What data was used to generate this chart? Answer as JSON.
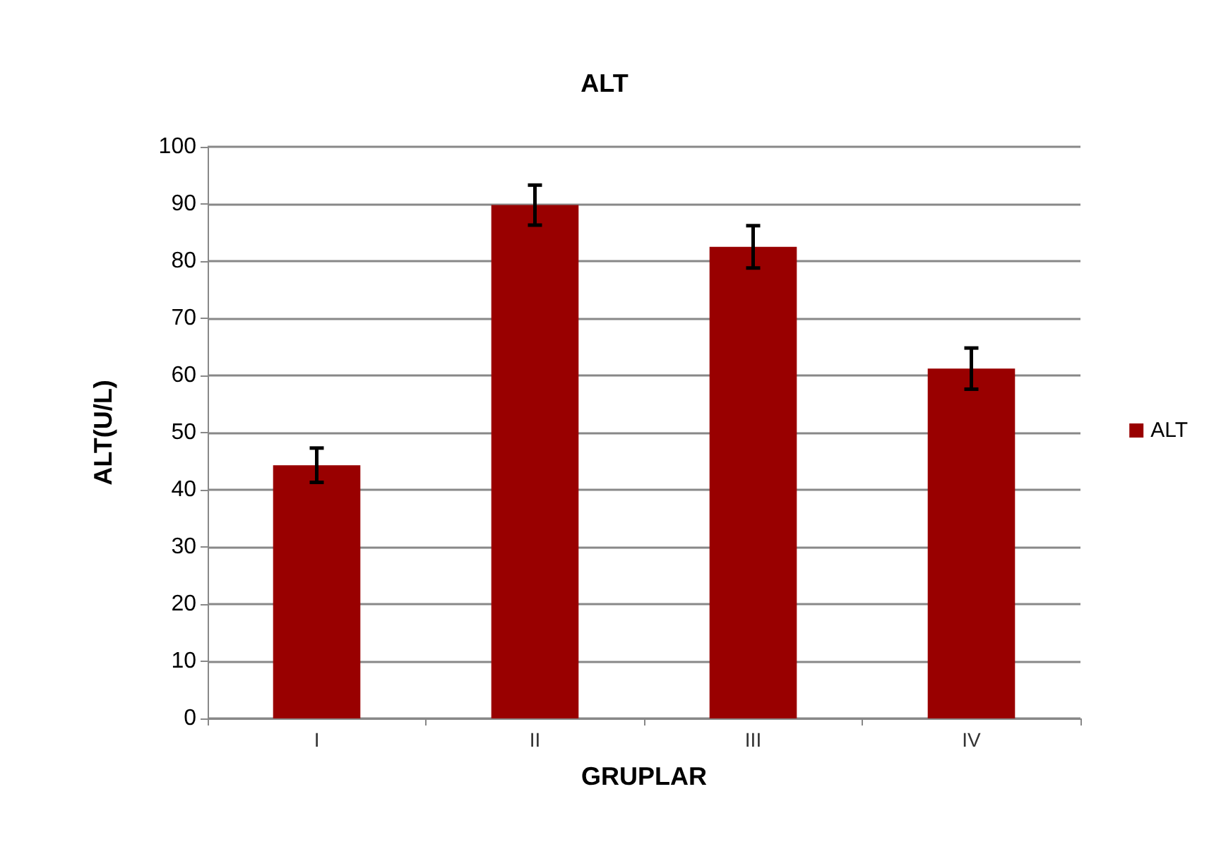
{
  "chart_data": {
    "type": "bar",
    "title": "ALT",
    "xlabel": "GRUPLAR",
    "ylabel": "ALT(U/L)",
    "categories": [
      "I",
      "II",
      "III",
      "IV"
    ],
    "series": [
      {
        "name": "ALT",
        "color": "#990000",
        "values": [
          44.3,
          89.8,
          82.5,
          61.2
        ],
        "errors": [
          3,
          3.5,
          3.7,
          3.6
        ]
      }
    ],
    "ylim": [
      0,
      100
    ],
    "yticks": [
      0,
      10,
      20,
      30,
      40,
      50,
      60,
      70,
      80,
      90,
      100
    ],
    "grid": "y",
    "legend": "right"
  }
}
